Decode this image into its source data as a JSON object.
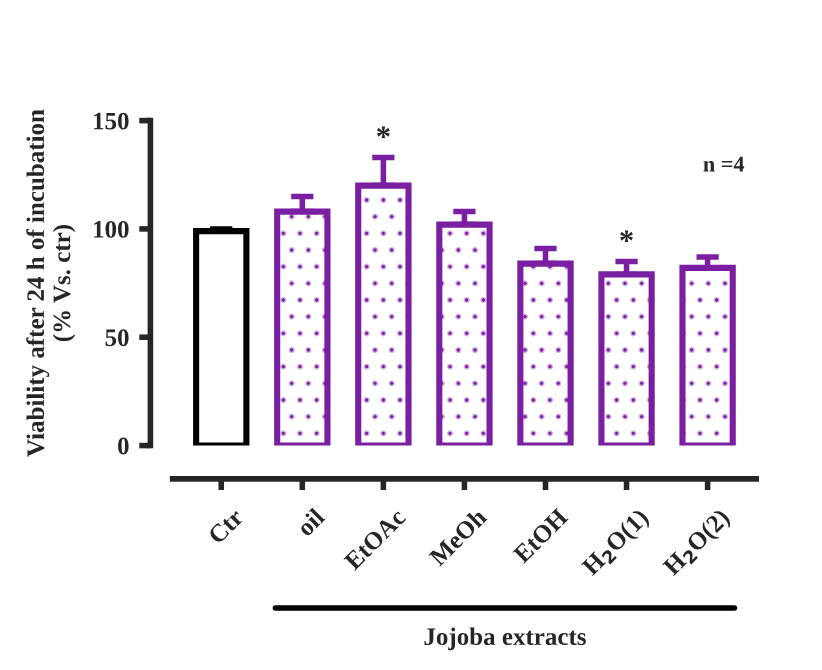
{
  "chart_data": {
    "type": "bar",
    "ylabel": "Viability after 24 h of incubation\n(% Vs. ctr)",
    "xlabel": "Jojoba extracts",
    "categories": [
      "Ctr",
      "oil",
      "EtOAc",
      "MeOh",
      "EtOH",
      "H$_{2}$O(1)",
      "H$_{2}$O(2)"
    ],
    "values": [
      99,
      108,
      120,
      102,
      84,
      79,
      82
    ],
    "errors": [
      1,
      7,
      13,
      6,
      7,
      6,
      5
    ],
    "colors": [
      "#000000",
      "#7b1fa2",
      "#7b1fa2",
      "#7b1fa2",
      "#7b1fa2",
      "#7b1fa2",
      "#7b1fa2"
    ],
    "ylim": [
      0,
      150
    ],
    "yticks": [
      0,
      50,
      100,
      150
    ],
    "grid": false,
    "annotations": [
      {
        "text": "*",
        "x": "EtOAc",
        "y": 133
      },
      {
        "text": "*",
        "x": "H$_{2}$O(1)",
        "y": 85
      },
      "n =4"
    ]
  }
}
